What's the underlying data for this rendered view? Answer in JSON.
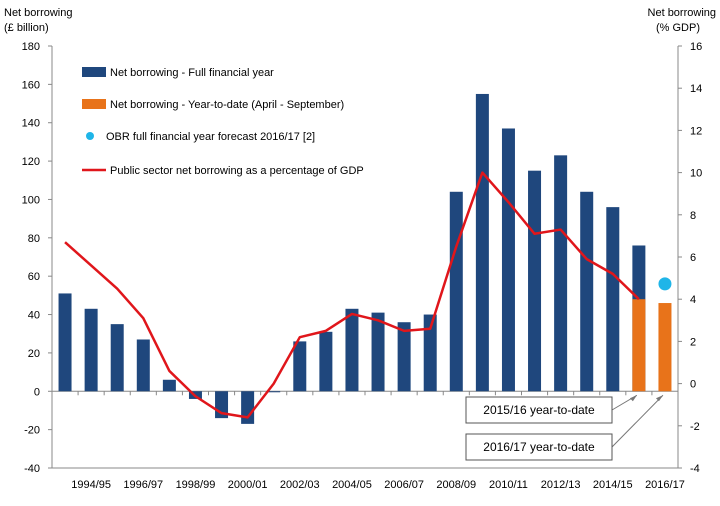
{
  "chart_data": {
    "type": "bar",
    "left_axis_title": [
      "Net borrowing",
      "(£ billion)"
    ],
    "right_axis_title": [
      "Net borrowing",
      "(% GDP)"
    ],
    "categories": [
      "1993/94",
      "1994/95",
      "1995/96",
      "1996/97",
      "1997/98",
      "1998/99",
      "1999/00",
      "2000/01",
      "2001/02",
      "2002/03",
      "2003/04",
      "2004/05",
      "2005/06",
      "2006/07",
      "2007/08",
      "2008/09",
      "2009/10",
      "2010/11",
      "2011/12",
      "2012/13",
      "2013/14",
      "2014/15",
      "2015/16",
      "2016/17"
    ],
    "x_tick_labels": [
      "1994/95",
      "1996/97",
      "1998/99",
      "2000/01",
      "2002/03",
      "2004/05",
      "2006/07",
      "2008/09",
      "2010/11",
      "2012/13",
      "2014/15",
      "2016/17"
    ],
    "ylim_left": [
      -40,
      180
    ],
    "yticks_left": [
      -40,
      -20,
      0,
      20,
      40,
      60,
      80,
      100,
      120,
      140,
      160,
      180
    ],
    "ylim_right": [
      -4,
      16
    ],
    "yticks_right": [
      -4,
      -2,
      0,
      2,
      4,
      6,
      8,
      10,
      12,
      14,
      16
    ],
    "series": [
      {
        "name": "Net borrowing - Full financial year",
        "kind": "bar",
        "axis": "left",
        "color": "#1f477d",
        "values": [
          51,
          43,
          35,
          27,
          6,
          -4,
          -14,
          -17,
          0,
          26,
          31,
          43,
          41,
          36,
          40,
          104,
          155,
          137,
          115,
          123,
          104,
          96,
          76,
          null
        ]
      },
      {
        "name": "Net borrowing - Year-to-date (April - September)",
        "kind": "bar",
        "axis": "left",
        "color": "#e8731a",
        "values": [
          null,
          null,
          null,
          null,
          null,
          null,
          null,
          null,
          null,
          null,
          null,
          null,
          null,
          null,
          null,
          null,
          null,
          null,
          null,
          null,
          null,
          null,
          48,
          46
        ]
      },
      {
        "name": "OBR full financial year forecast 2016/17 [2]",
        "kind": "point",
        "axis": "left",
        "color": "#1fb5e8",
        "values": [
          null,
          null,
          null,
          null,
          null,
          null,
          null,
          null,
          null,
          null,
          null,
          null,
          null,
          null,
          null,
          null,
          null,
          null,
          null,
          null,
          null,
          null,
          null,
          56
        ]
      },
      {
        "name": "Public sector net borrowing as a percentage of GDP",
        "kind": "line",
        "axis": "right",
        "color": "#e0161b",
        "values": [
          6.7,
          5.6,
          4.5,
          3.1,
          0.6,
          -0.6,
          -1.4,
          -1.6,
          0.0,
          2.2,
          2.5,
          3.3,
          3.0,
          2.5,
          2.6,
          6.5,
          10.0,
          8.6,
          7.1,
          7.3,
          5.9,
          5.2,
          4.0,
          null
        ]
      }
    ],
    "annotations": [
      {
        "text": "2015/16 year-to-date",
        "target": "2015/16"
      },
      {
        "text": "2016/17 year-to-date",
        "target": "2016/17"
      }
    ],
    "legend_position": "top-left",
    "grid": false
  }
}
